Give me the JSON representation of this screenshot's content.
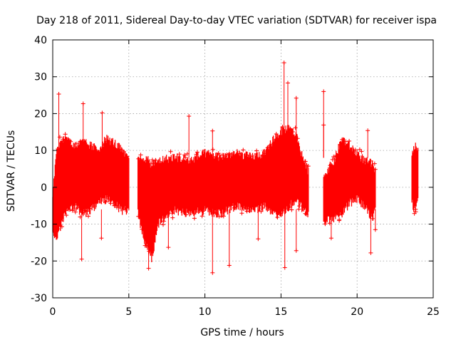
{
  "chart_data": {
    "type": "scatter",
    "title": "Day 218 of 2011, Sidereal Day-to-day VTEC variation (SDTVAR) for receiver ispa",
    "xlabel": "GPS time / hours",
    "ylabel": "SDTVAR / TECUs",
    "xlim": [
      0,
      25
    ],
    "ylim": [
      -30,
      40
    ],
    "xticks": [
      0,
      5,
      10,
      15,
      20,
      25
    ],
    "yticks": [
      -30,
      -20,
      -10,
      0,
      10,
      20,
      30,
      40
    ],
    "grid": true,
    "marker": "+",
    "series_color": "#ff0000",
    "band_color": "#ff0000",
    "envelope": [
      {
        "x": 0.0,
        "low": -12,
        "high": -3
      },
      {
        "x": 0.3,
        "low": -12,
        "high": 10
      },
      {
        "x": 0.8,
        "low": -6,
        "high": 12
      },
      {
        "x": 1.5,
        "low": -4,
        "high": 10
      },
      {
        "x": 2.0,
        "low": -6,
        "high": 11
      },
      {
        "x": 2.5,
        "low": -5,
        "high": 10
      },
      {
        "x": 3.0,
        "low": -3,
        "high": 9
      },
      {
        "x": 3.5,
        "low": -2,
        "high": 12
      },
      {
        "x": 4.0,
        "low": -3,
        "high": 11
      },
      {
        "x": 4.5,
        "low": -5,
        "high": 9
      },
      {
        "x": 5.0,
        "low": -5,
        "high": 6
      }
    ],
    "envelope2": [
      {
        "x": 5.6,
        "low": -6,
        "high": 6
      },
      {
        "x": 6.0,
        "low": -13,
        "high": 7
      },
      {
        "x": 6.5,
        "low": -18,
        "high": 5
      },
      {
        "x": 7.0,
        "low": -8,
        "high": 6
      },
      {
        "x": 8.0,
        "low": -5,
        "high": 7
      },
      {
        "x": 9.0,
        "low": -6,
        "high": 6
      },
      {
        "x": 10.0,
        "low": -5,
        "high": 8
      },
      {
        "x": 11.0,
        "low": -6,
        "high": 7
      },
      {
        "x": 12.0,
        "low": -4,
        "high": 8
      },
      {
        "x": 13.0,
        "low": -5,
        "high": 7
      },
      {
        "x": 14.0,
        "low": -4,
        "high": 8
      },
      {
        "x": 14.5,
        "low": -6,
        "high": 12
      },
      {
        "x": 15.0,
        "low": -6,
        "high": 14
      },
      {
        "x": 15.5,
        "low": -4,
        "high": 15
      },
      {
        "x": 16.0,
        "low": -2,
        "high": 13
      },
      {
        "x": 16.5,
        "low": -5,
        "high": 6
      },
      {
        "x": 16.8,
        "low": -6,
        "high": 3
      }
    ],
    "envelope3": [
      {
        "x": 17.8,
        "low": -8,
        "high": 2
      },
      {
        "x": 18.5,
        "low": -7,
        "high": 6
      },
      {
        "x": 19.0,
        "low": -6,
        "high": 12
      },
      {
        "x": 19.5,
        "low": -3,
        "high": 10
      },
      {
        "x": 20.0,
        "low": -2,
        "high": 8
      },
      {
        "x": 20.5,
        "low": -4,
        "high": 6
      },
      {
        "x": 21.0,
        "low": -7,
        "high": 5
      },
      {
        "x": 21.2,
        "low": -5,
        "high": 3
      }
    ],
    "envelope4": [
      {
        "x": 23.6,
        "low": -3,
        "high": 8
      },
      {
        "x": 23.8,
        "low": -5,
        "high": 10
      },
      {
        "x": 24.0,
        "low": -2,
        "high": 9
      }
    ],
    "outliers": [
      {
        "x": 0.4,
        "y": 25.3
      },
      {
        "x": 2.0,
        "y": 22.7
      },
      {
        "x": 3.25,
        "y": 20.2
      },
      {
        "x": 3.2,
        "y": -13.8
      },
      {
        "x": 1.9,
        "y": -19.5
      },
      {
        "x": 8.95,
        "y": 19.3
      },
      {
        "x": 10.5,
        "y": 15.3
      },
      {
        "x": 10.5,
        "y": -23.2
      },
      {
        "x": 11.6,
        "y": -21.2
      },
      {
        "x": 13.5,
        "y": -14.0
      },
      {
        "x": 7.6,
        "y": -16.3
      },
      {
        "x": 15.2,
        "y": 33.8
      },
      {
        "x": 15.45,
        "y": 28.3
      },
      {
        "x": 15.25,
        "y": -21.8
      },
      {
        "x": 16.0,
        "y": 24.2
      },
      {
        "x": 16.0,
        "y": -17.2
      },
      {
        "x": 17.8,
        "y": 26.0
      },
      {
        "x": 17.8,
        "y": 16.9
      },
      {
        "x": 20.7,
        "y": 15.4
      },
      {
        "x": 21.2,
        "y": -11.5
      },
      {
        "x": 20.9,
        "y": -17.8
      },
      {
        "x": 6.3,
        "y": -22.0
      },
      {
        "x": 18.3,
        "y": -13.8
      }
    ]
  }
}
